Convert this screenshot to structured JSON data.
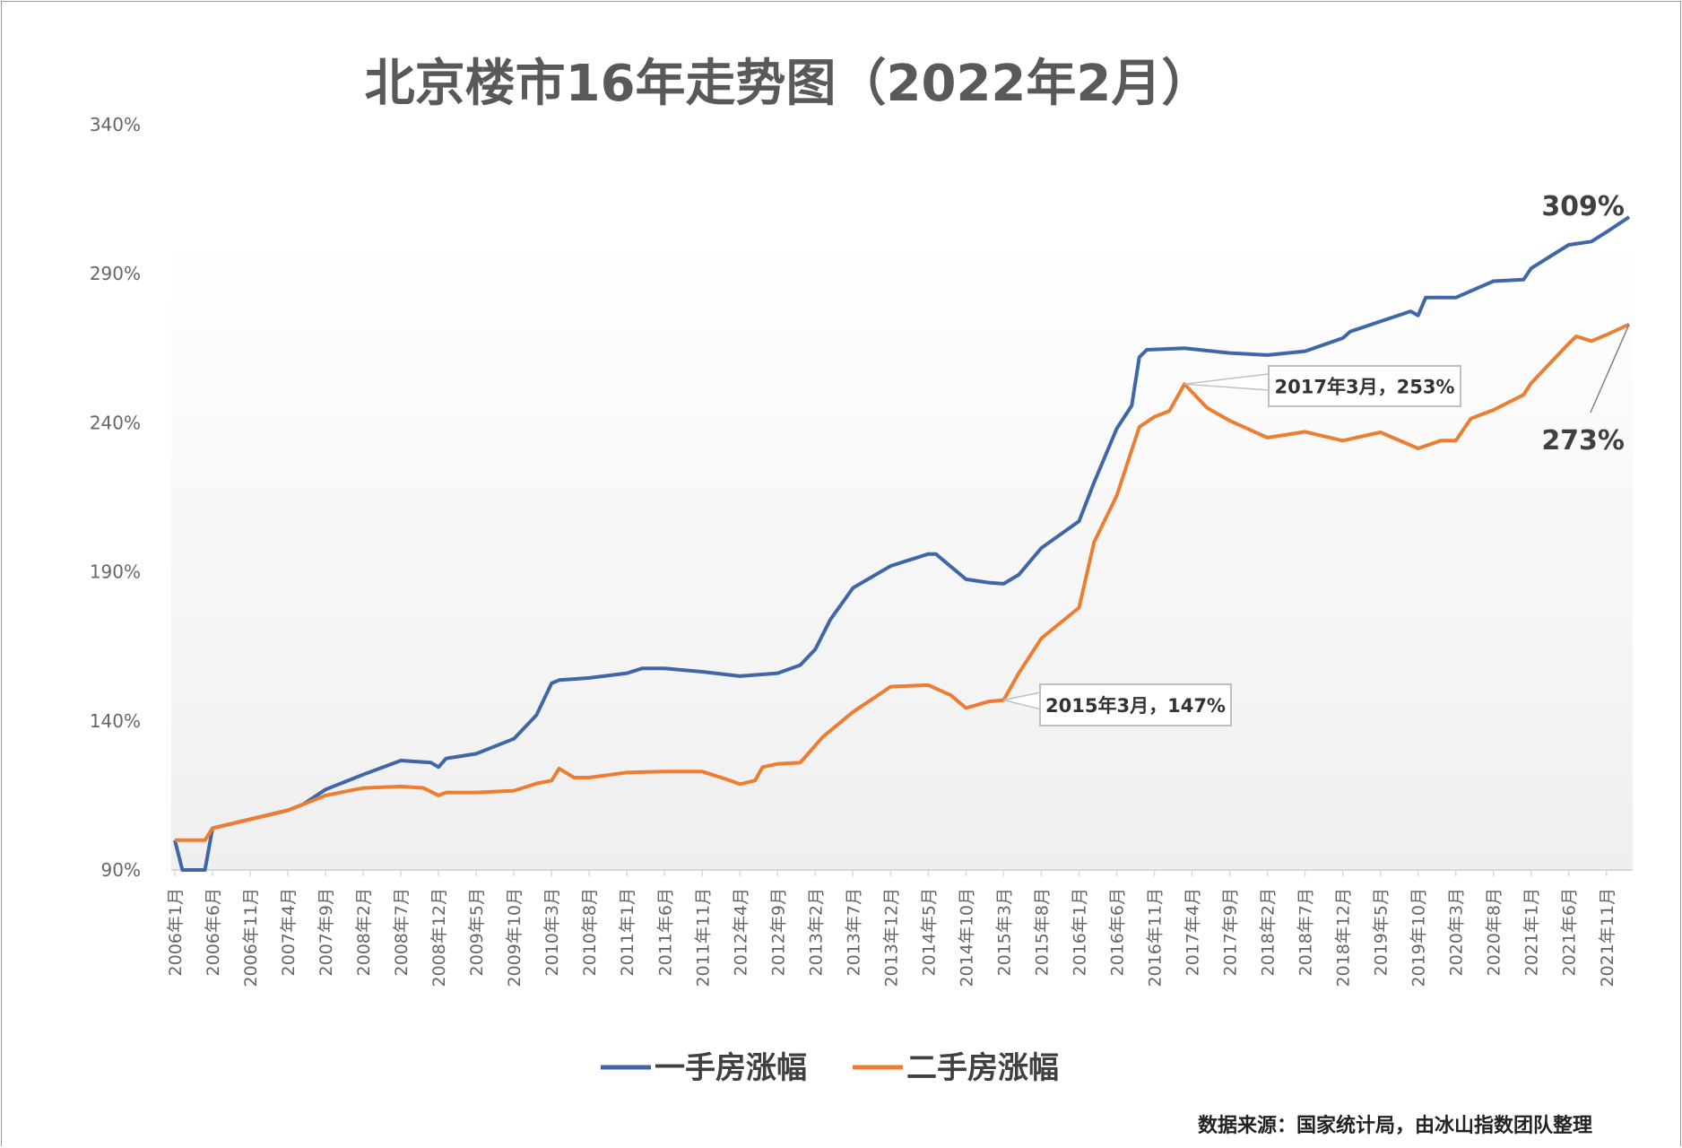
{
  "chart_data": {
    "type": "line",
    "title": "北京楼市16年走势图（2022年2月）",
    "xlabel": "",
    "ylabel": "",
    "ylim": [
      90,
      340
    ],
    "yticks": [
      "90%",
      "140%",
      "190%",
      "240%",
      "290%",
      "340%"
    ],
    "ytick_values": [
      90,
      140,
      190,
      240,
      290,
      340
    ],
    "x_range": [
      "2006-01",
      "2022-02"
    ],
    "xticks": [
      "2006年1月",
      "2006年6月",
      "2006年11月",
      "2007年4月",
      "2007年9月",
      "2008年2月",
      "2008年7月",
      "2008年12月",
      "2009年5月",
      "2009年10月",
      "2010年3月",
      "2010年8月",
      "2011年1月",
      "2011年6月",
      "2011年11月",
      "2012年4月",
      "2012年9月",
      "2013年2月",
      "2013年7月",
      "2013年12月",
      "2014年5月",
      "2014年10月",
      "2015年3月",
      "2015年8月",
      "2016年1月",
      "2016年6月",
      "2016年11月",
      "2017年4月",
      "2017年9月",
      "2018年2月",
      "2018年7月",
      "2018年12月",
      "2019年5月",
      "2019年10月",
      "2020年3月",
      "2020年8月",
      "2021年1月",
      "2021年6月",
      "2021年11月"
    ],
    "grid": false,
    "legend_position": "bottom",
    "series": [
      {
        "name": "一手房涨幅",
        "color": "#3f67a8",
        "points": [
          [
            "2006-01",
            100
          ],
          [
            "2006-02",
            90
          ],
          [
            "2006-05",
            90
          ],
          [
            "2006-06",
            104
          ],
          [
            "2006-11",
            107
          ],
          [
            "2007-04",
            110
          ],
          [
            "2007-06",
            112
          ],
          [
            "2007-09",
            117
          ],
          [
            "2008-02",
            122
          ],
          [
            "2008-07",
            126.7
          ],
          [
            "2008-11",
            126
          ],
          [
            "2008-12",
            124.5
          ],
          [
            "2009-01",
            127.4
          ],
          [
            "2009-05",
            129
          ],
          [
            "2009-10",
            134
          ],
          [
            "2010-01",
            142
          ],
          [
            "2010-03",
            152.6
          ],
          [
            "2010-04",
            153.7
          ],
          [
            "2010-08",
            154.4
          ],
          [
            "2011-01",
            156
          ],
          [
            "2011-03",
            157.6
          ],
          [
            "2011-06",
            157.6
          ],
          [
            "2011-11",
            156.5
          ],
          [
            "2012-04",
            155
          ],
          [
            "2012-09",
            156
          ],
          [
            "2012-12",
            158.7
          ],
          [
            "2013-02",
            164
          ],
          [
            "2013-04",
            174
          ],
          [
            "2013-07",
            184.6
          ],
          [
            "2013-12",
            192
          ],
          [
            "2014-05",
            196
          ],
          [
            "2014-06",
            196
          ],
          [
            "2014-10",
            187.5
          ],
          [
            "2015-01",
            186.4
          ],
          [
            "2015-03",
            186
          ],
          [
            "2015-05",
            189
          ],
          [
            "2015-08",
            198
          ],
          [
            "2016-01",
            207
          ],
          [
            "2016-03",
            220
          ],
          [
            "2016-06",
            238
          ],
          [
            "2016-08",
            245.8
          ],
          [
            "2016-09",
            262
          ],
          [
            "2016-10",
            264.5
          ],
          [
            "2017-03",
            265
          ],
          [
            "2017-09",
            263.4
          ],
          [
            "2018-02",
            262.7
          ],
          [
            "2018-07",
            264
          ],
          [
            "2018-12",
            268.4
          ],
          [
            "2019-01",
            270.6
          ],
          [
            "2019-05",
            274
          ],
          [
            "2019-09",
            277.4
          ],
          [
            "2019-10",
            276
          ],
          [
            "2019-11",
            282
          ],
          [
            "2020-03",
            282
          ],
          [
            "2020-08",
            287.5
          ],
          [
            "2020-12",
            288
          ],
          [
            "2021-01",
            291.8
          ],
          [
            "2021-06",
            299.7
          ],
          [
            "2021-09",
            300.8
          ],
          [
            "2021-11",
            304
          ],
          [
            "2022-02",
            309
          ]
        ]
      },
      {
        "name": "二手房涨幅",
        "color": "#ed7d31",
        "points": [
          [
            "2006-01",
            100
          ],
          [
            "2006-05",
            100
          ],
          [
            "2006-06",
            104
          ],
          [
            "2006-11",
            107
          ],
          [
            "2007-04",
            110
          ],
          [
            "2007-06",
            112
          ],
          [
            "2007-09",
            115
          ],
          [
            "2008-02",
            117.5
          ],
          [
            "2008-07",
            118
          ],
          [
            "2008-10",
            117.5
          ],
          [
            "2008-12",
            115
          ],
          [
            "2009-01",
            116
          ],
          [
            "2009-05",
            116
          ],
          [
            "2009-10",
            116.6
          ],
          [
            "2010-01",
            119
          ],
          [
            "2010-03",
            120
          ],
          [
            "2010-04",
            124
          ],
          [
            "2010-06",
            121
          ],
          [
            "2010-08",
            121
          ],
          [
            "2011-01",
            122.7
          ],
          [
            "2011-06",
            123
          ],
          [
            "2011-11",
            123
          ],
          [
            "2012-02",
            120.6
          ],
          [
            "2012-04",
            118.8
          ],
          [
            "2012-06",
            120
          ],
          [
            "2012-07",
            124.5
          ],
          [
            "2012-09",
            125.6
          ],
          [
            "2012-12",
            126
          ],
          [
            "2013-03",
            134.6
          ],
          [
            "2013-07",
            143
          ],
          [
            "2013-12",
            151.5
          ],
          [
            "2014-05",
            152
          ],
          [
            "2014-08",
            148.6
          ],
          [
            "2014-10",
            144.3
          ],
          [
            "2015-01",
            146.5
          ],
          [
            "2015-03",
            147
          ],
          [
            "2015-05",
            156
          ],
          [
            "2015-08",
            167.7
          ],
          [
            "2016-01",
            178
          ],
          [
            "2016-03",
            200
          ],
          [
            "2016-06",
            215.5
          ],
          [
            "2016-09",
            238.6
          ],
          [
            "2016-11",
            242
          ],
          [
            "2017-01",
            244
          ],
          [
            "2017-03",
            253
          ],
          [
            "2017-06",
            245
          ],
          [
            "2017-09",
            240.7
          ],
          [
            "2018-02",
            235
          ],
          [
            "2018-07",
            237
          ],
          [
            "2018-12",
            234
          ],
          [
            "2019-05",
            236.8
          ],
          [
            "2019-10",
            231.4
          ],
          [
            "2020-01",
            234
          ],
          [
            "2020-03",
            234
          ],
          [
            "2020-05",
            241.4
          ],
          [
            "2020-08",
            244.3
          ],
          [
            "2020-12",
            249.4
          ],
          [
            "2021-01",
            253.3
          ],
          [
            "2021-06",
            266.6
          ],
          [
            "2021-07",
            269
          ],
          [
            "2021-09",
            267.4
          ],
          [
            "2021-11",
            269.5
          ],
          [
            "2022-02",
            273
          ]
        ]
      }
    ],
    "annotations": [
      {
        "text": "2015年3月，147%",
        "series": "二手房涨幅",
        "x": "2015-03",
        "y": 147
      },
      {
        "text": "2017年3月，253%",
        "series": "二手房涨幅",
        "x": "2017-03",
        "y": 253
      },
      {
        "text": "309%",
        "series": "一手房涨幅",
        "x": "2022-02",
        "y": 309
      },
      {
        "text": "273%",
        "series": "二手房涨幅",
        "x": "2022-02",
        "y": 273
      }
    ],
    "source": "数据来源：国家统计局，由冰山指数团队整理"
  }
}
